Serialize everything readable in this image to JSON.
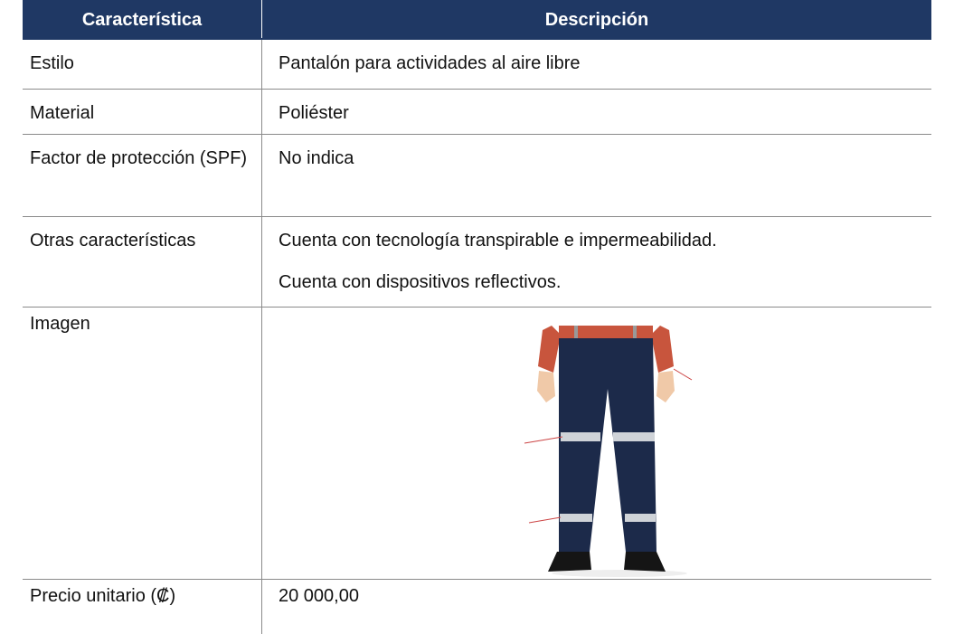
{
  "table": {
    "header": [
      "Característica",
      "Descripción"
    ],
    "rows": [
      {
        "feature": "Estilo",
        "description": [
          "Pantalón para actividades al aire libre"
        ]
      },
      {
        "feature": "Material",
        "description": [
          "Poliéster"
        ]
      },
      {
        "feature": "Factor de protección (SPF)",
        "description": [
          "No indica"
        ]
      },
      {
        "feature": "Otras características",
        "description": [
          "Cuenta con tecnología transpirable e impermeabilidad.",
          "Cuenta con dispositivos reflectivos."
        ]
      },
      {
        "feature": "Imagen"
      },
      {
        "feature": "Precio unitario (₡)",
        "description": [
          "20 000,00"
        ]
      }
    ]
  }
}
